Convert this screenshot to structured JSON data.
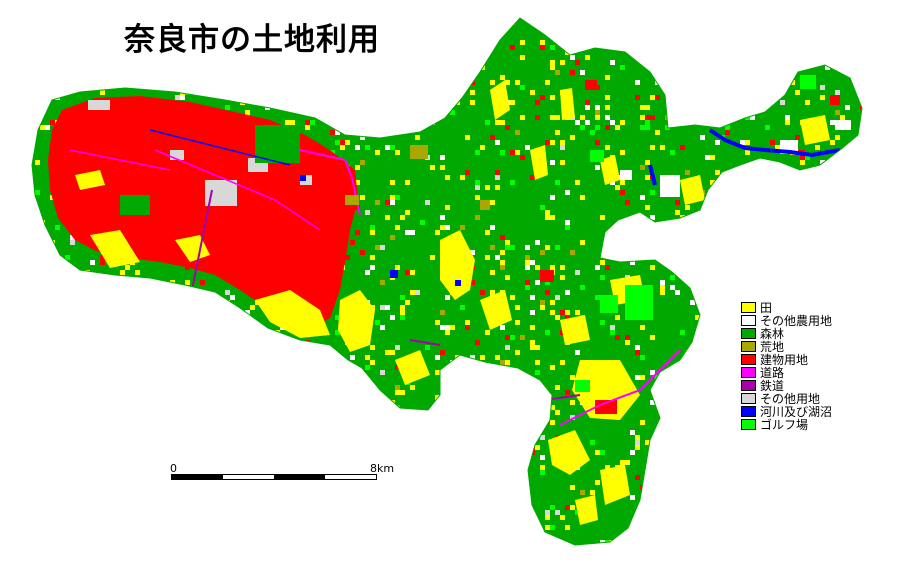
{
  "title": "奈良市の土地利用",
  "legend": [
    {
      "label": "田",
      "color": "#ffff00"
    },
    {
      "label": "その他農用地",
      "color": "#ffffff"
    },
    {
      "label": "森林",
      "color": "#00a800"
    },
    {
      "label": "荒地",
      "color": "#a8a800"
    },
    {
      "label": "建物用地",
      "color": "#ff0000"
    },
    {
      "label": "道路",
      "color": "#ff00ff"
    },
    {
      "label": "鉄道",
      "color": "#a800a8"
    },
    {
      "label": "その他用地",
      "color": "#d8d8d8"
    },
    {
      "label": "河川及び湖沼",
      "color": "#0000ff"
    },
    {
      "label": "ゴルフ場",
      "color": "#00ff00"
    }
  ],
  "scale": {
    "start": "0",
    "end": "8km",
    "segments": 4
  }
}
